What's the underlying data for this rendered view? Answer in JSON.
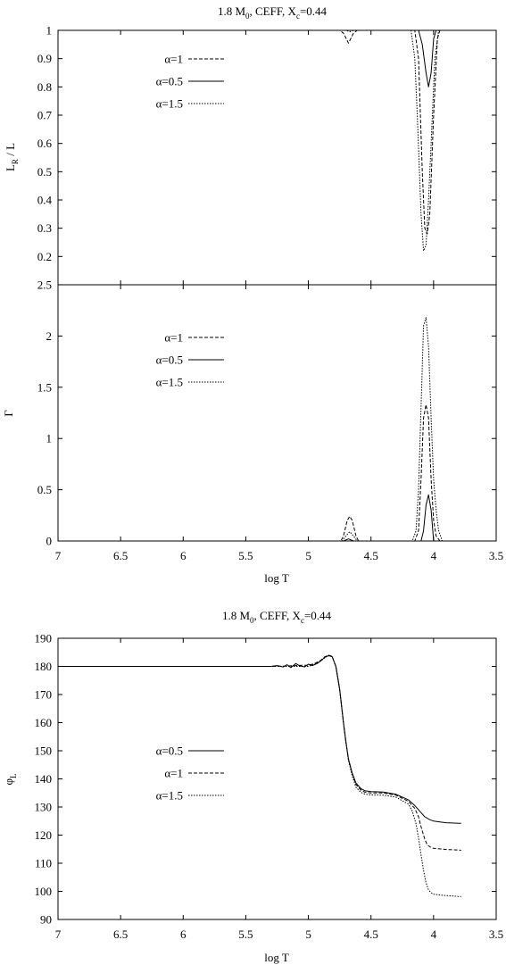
{
  "figure_top": {
    "title": "1.8 M₀, CEFF, Xₑ=0.44",
    "title_parts": {
      "pre": "1.8 M",
      "sub1": "0",
      "mid": ", CEFF, X",
      "sub2": "c",
      "post": "=0.44"
    },
    "xlabel": "log T"
  },
  "figure_bottom": {
    "title": "1.8 M₀, CEFF, Xₑ=0.44",
    "title_parts": {
      "pre": "1.8 M",
      "sub1": "0",
      "mid": ", CEFF, X",
      "sub2": "c",
      "post": "=0.44"
    },
    "xlabel": "log T"
  },
  "chart_data": [
    {
      "type": "line",
      "ylabel": "L_R / L",
      "ylabel_parts": {
        "pre": "L",
        "sub": "R",
        "post": " / L"
      },
      "xlim": [
        7,
        3.5
      ],
      "ylim": [
        0.1,
        1.0
      ],
      "xticks": [
        "7",
        "6.5",
        "6",
        "5.5",
        "5",
        "4.5",
        "4",
        "3.5"
      ],
      "yticks": [
        "1",
        "0.9",
        "0.8",
        "0.7",
        "0.6",
        "0.5",
        "0.4",
        "0.3",
        "0.2"
      ],
      "legend": [
        "α=1",
        "α=0.5",
        "α=1.5"
      ],
      "series": [
        {
          "name": "α=1",
          "style": "dashed",
          "x": [
            7.0,
            4.75,
            4.72,
            4.68,
            4.64,
            4.61,
            4.15,
            4.12,
            4.09,
            4.07,
            4.05,
            4.03,
            4.0,
            3.97,
            3.95,
            3.9,
            3.5
          ],
          "y": [
            1.0,
            1.0,
            0.99,
            0.955,
            0.99,
            1.0,
            1.0,
            0.9,
            0.5,
            0.3,
            0.28,
            0.35,
            0.7,
            0.97,
            1.0,
            1.0,
            1.0
          ]
        },
        {
          "name": "α=0.5",
          "style": "solid",
          "x": [
            7.0,
            4.12,
            4.09,
            4.06,
            4.04,
            4.02,
            4.0,
            3.98,
            3.5
          ],
          "y": [
            1.0,
            1.0,
            0.95,
            0.85,
            0.8,
            0.85,
            0.97,
            1.0,
            1.0
          ]
        },
        {
          "name": "α=1.5",
          "style": "dotted",
          "x": [
            7.0,
            4.7,
            4.67,
            4.64,
            4.18,
            4.15,
            4.13,
            4.1,
            4.08,
            4.06,
            4.04,
            4.02,
            3.99,
            3.96,
            3.93,
            3.5
          ],
          "y": [
            1.0,
            1.0,
            0.995,
            1.0,
            1.0,
            0.9,
            0.7,
            0.35,
            0.22,
            0.24,
            0.4,
            0.6,
            0.9,
            1.0,
            1.0,
            1.0
          ]
        }
      ]
    },
    {
      "type": "line",
      "ylabel": "Γ",
      "xlabel": "log T",
      "xlim": [
        7,
        3.5
      ],
      "ylim": [
        0,
        2.5
      ],
      "xticks": [
        "7",
        "6.5",
        "6",
        "5.5",
        "5",
        "4.5",
        "4",
        "3.5"
      ],
      "yticks": [
        "2.5",
        "2",
        "1.5",
        "1",
        "0.5",
        "0"
      ],
      "legend": [
        "α=1",
        "α=0.5",
        "α=1.5"
      ],
      "series": [
        {
          "name": "α=1",
          "style": "dashed",
          "x": [
            7.0,
            4.74,
            4.72,
            4.69,
            4.67,
            4.65,
            4.62,
            4.6,
            4.15,
            4.12,
            4.1,
            4.08,
            4.06,
            4.04,
            4.02,
            4.0,
            3.98,
            3.95,
            3.5
          ],
          "y": [
            0,
            0,
            0.05,
            0.2,
            0.24,
            0.2,
            0.05,
            0,
            0,
            0.1,
            0.6,
            1.2,
            1.33,
            1.2,
            0.6,
            0.2,
            0.05,
            0,
            0
          ]
        },
        {
          "name": "α=0.5",
          "style": "solid",
          "x": [
            7.0,
            4.72,
            4.68,
            4.64,
            4.1,
            4.08,
            4.06,
            4.04,
            4.02,
            4.0,
            3.5
          ],
          "y": [
            0,
            0,
            0.02,
            0,
            0,
            0.1,
            0.35,
            0.45,
            0.3,
            0,
            0
          ]
        },
        {
          "name": "α=1.5",
          "style": "dotted",
          "x": [
            7.0,
            4.73,
            4.7,
            4.67,
            4.64,
            4.61,
            4.17,
            4.14,
            4.12,
            4.1,
            4.08,
            4.06,
            4.04,
            4.02,
            4.0,
            3.98,
            3.96,
            3.93,
            3.5
          ],
          "y": [
            0,
            0,
            0.05,
            0.09,
            0.05,
            0,
            0,
            0.1,
            0.5,
            1.3,
            2.1,
            2.18,
            1.9,
            1.2,
            0.6,
            0.3,
            0.1,
            0,
            0
          ]
        }
      ]
    },
    {
      "type": "line",
      "ylabel": "φ_L",
      "ylabel_parts": {
        "pre": "φ",
        "sub": "L"
      },
      "xlabel": "log T",
      "xlim": [
        7,
        3.5
      ],
      "ylim": [
        90,
        190
      ],
      "xticks": [
        "7",
        "6.5",
        "6",
        "5.5",
        "5",
        "4.5",
        "4",
        "3.5"
      ],
      "yticks": [
        "190",
        "180",
        "170",
        "160",
        "150",
        "140",
        "130",
        "120",
        "110",
        "100",
        "90"
      ],
      "legend": [
        "α=0.5",
        "α=1",
        "α=1.5"
      ],
      "series": [
        {
          "name": "α=0.5",
          "style": "solid",
          "x": [
            7.0,
            5.3,
            5.25,
            5.2,
            5.17,
            5.14,
            5.1,
            5.07,
            5.03,
            5.0,
            4.97,
            4.93,
            4.9,
            4.87,
            4.84,
            4.81,
            4.78,
            4.75,
            4.72,
            4.7,
            4.68,
            4.65,
            4.62,
            4.58,
            4.55,
            4.5,
            4.4,
            4.3,
            4.2,
            4.15,
            4.1,
            4.07,
            4.03,
            4.0,
            3.95,
            3.9,
            3.8,
            3.78
          ],
          "y": [
            180,
            180,
            180.3,
            179.8,
            180.6,
            179.6,
            181.0,
            180.2,
            179.8,
            180.8,
            180.3,
            181.0,
            182.0,
            183.2,
            183.8,
            183.5,
            180.0,
            172.0,
            160.0,
            153.0,
            147.0,
            142.0,
            138.5,
            136.5,
            135.8,
            135.5,
            135.3,
            134.5,
            132.5,
            130.5,
            128.0,
            126.5,
            125.5,
            125.0,
            124.7,
            124.4,
            124.2,
            124.2
          ]
        },
        {
          "name": "α=1",
          "style": "dashed",
          "x": [
            7.0,
            5.25,
            5.2,
            5.15,
            5.1,
            5.05,
            5.0,
            4.95,
            4.9,
            4.87,
            4.84,
            4.81,
            4.78,
            4.75,
            4.72,
            4.7,
            4.68,
            4.65,
            4.62,
            4.58,
            4.55,
            4.5,
            4.4,
            4.3,
            4.2,
            4.15,
            4.12,
            4.1,
            4.07,
            4.05,
            4.02,
            4.0,
            3.95,
            3.9,
            3.8,
            3.78
          ],
          "y": [
            180,
            180,
            180.1,
            180.2,
            180.3,
            180.4,
            180.4,
            181.0,
            182.2,
            183.4,
            184.0,
            183.6,
            180.0,
            172.0,
            160.0,
            153.0,
            147.0,
            142.0,
            138.0,
            136.0,
            135.3,
            135.0,
            135.0,
            134.2,
            132.0,
            129.5,
            126.5,
            123.0,
            118.5,
            116.5,
            115.6,
            115.3,
            115.1,
            114.9,
            114.7,
            114.6
          ]
        },
        {
          "name": "α=1.5",
          "style": "dotted",
          "x": [
            7.0,
            5.0,
            4.95,
            4.9,
            4.87,
            4.84,
            4.81,
            4.78,
            4.75,
            4.72,
            4.7,
            4.68,
            4.65,
            4.62,
            4.58,
            4.55,
            4.5,
            4.4,
            4.3,
            4.2,
            4.17,
            4.14,
            4.12,
            4.1,
            4.08,
            4.06,
            4.04,
            4.02,
            4.0,
            3.95,
            3.9,
            3.8,
            3.78
          ],
          "y": [
            180,
            180,
            180.8,
            182.0,
            183.0,
            183.8,
            183.4,
            179.8,
            171.5,
            159.5,
            152.5,
            146.5,
            141.0,
            137.0,
            135.2,
            134.6,
            134.3,
            134.2,
            133.5,
            131.0,
            128.5,
            124.0,
            119.0,
            113.0,
            107.5,
            103.0,
            100.5,
            99.5,
            99.0,
            98.7,
            98.5,
            98.2,
            98.2
          ]
        }
      ]
    }
  ]
}
